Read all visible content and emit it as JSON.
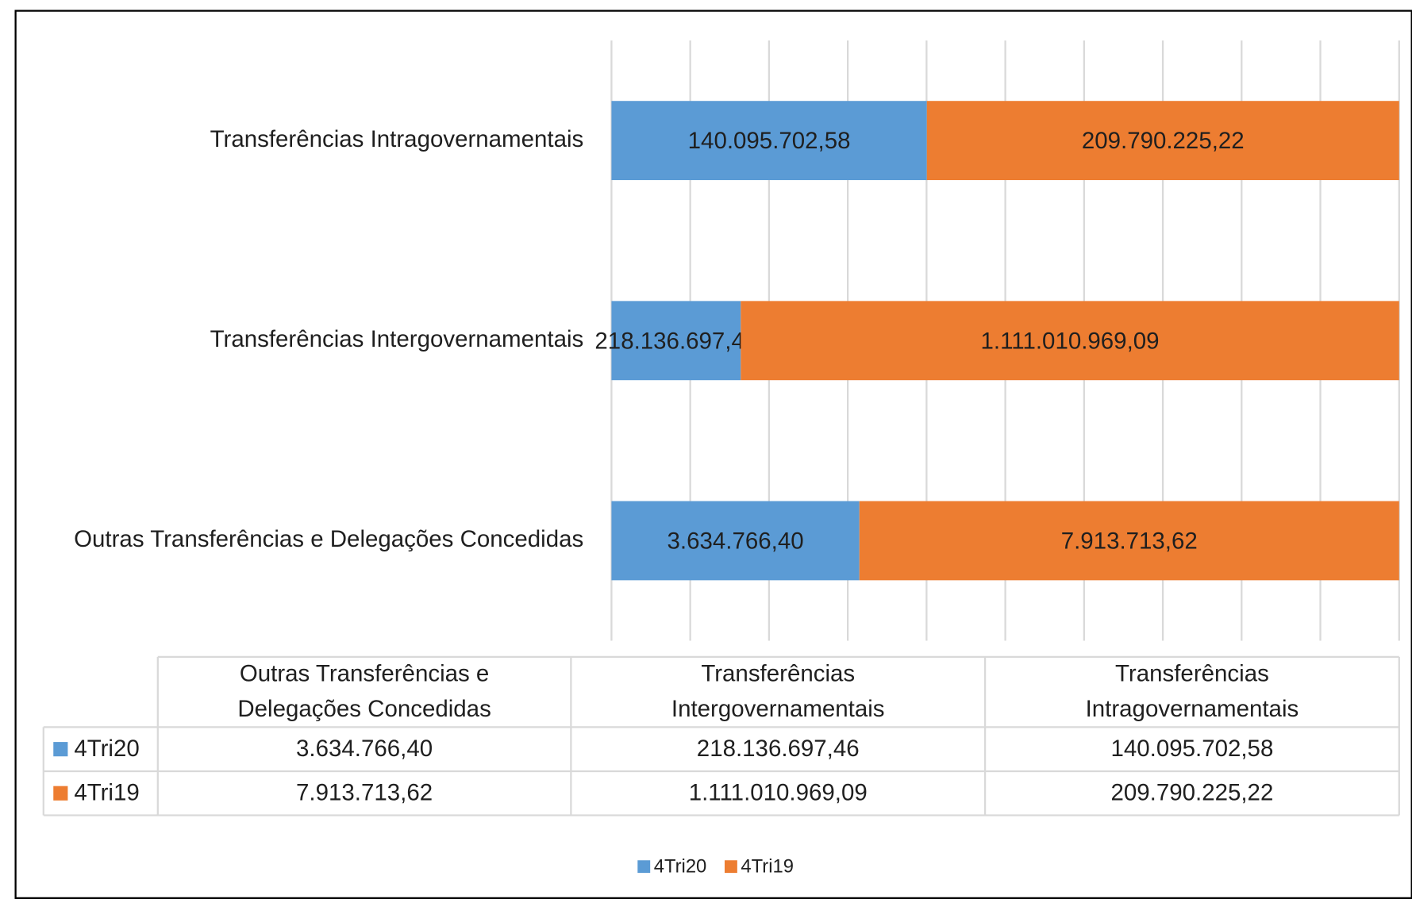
{
  "chart_data": {
    "type": "bar",
    "orientation": "horizontal",
    "stacked": "percent",
    "categories": [
      "Outras Transferências e Delegações Concedidas",
      "Transferências Intergovernamentais",
      "Transferências Intragovernamentais"
    ],
    "series": [
      {
        "name": "4Tri20",
        "color": "#5b9bd5",
        "values": [
          3634766.4,
          218136697.46,
          140095702.58
        ],
        "value_labels": [
          "3.634.766,40",
          "218.136.697,46",
          "140.095.702,58"
        ]
      },
      {
        "name": "4Tri19",
        "color": "#ed7d31",
        "values": [
          7913713.62,
          1111010969.09,
          209790225.22
        ],
        "value_labels": [
          "7.913.713,62",
          "1.111.010.969,09",
          "209.790.225,22"
        ]
      }
    ],
    "xlim": [
      0,
      100
    ],
    "xticks": [
      0,
      10,
      20,
      30,
      40,
      50,
      60,
      70,
      80,
      90,
      100
    ],
    "grid": true,
    "data_table": true,
    "legend": "bottom"
  }
}
